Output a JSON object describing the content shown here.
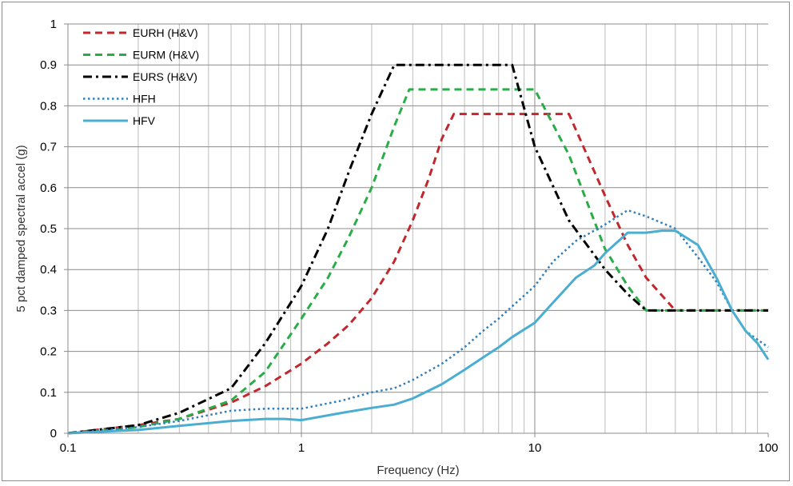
{
  "chart_data": {
    "type": "line",
    "title": "",
    "xlabel": "Frequency (Hz)",
    "ylabel": "5 pct damped spectral accel (g)",
    "xscale": "log",
    "xlim": [
      0.1,
      100
    ],
    "ylim": [
      0,
      1
    ],
    "x_ticks": [
      "0.1",
      "1",
      "10",
      "100"
    ],
    "y_ticks": [
      "0",
      "0.1",
      "0.2",
      "0.3",
      "0.4",
      "0.5",
      "0.6",
      "0.7",
      "0.8",
      "0.9",
      "1"
    ],
    "grid": "major and minor vertical, major horizontal",
    "legend_position": "top-left",
    "series": [
      {
        "name": "EURH (H&V)",
        "color": "#c0282d",
        "dash": "dashed",
        "x": [
          0.1,
          0.2,
          0.3,
          0.5,
          0.7,
          1,
          1.3,
          1.6,
          2,
          2.5,
          3,
          3.5,
          4,
          4.5,
          10,
          14,
          20,
          25,
          30,
          40,
          100
        ],
        "y": [
          0,
          0.02,
          0.035,
          0.075,
          0.115,
          0.17,
          0.22,
          0.265,
          0.33,
          0.42,
          0.52,
          0.62,
          0.72,
          0.78,
          0.78,
          0.78,
          0.58,
          0.46,
          0.38,
          0.3,
          0.3
        ]
      },
      {
        "name": "EURM (H&V)",
        "color": "#2aac48",
        "dash": "dashed",
        "x": [
          0.1,
          0.2,
          0.3,
          0.5,
          0.7,
          1,
          1.3,
          1.6,
          2,
          2.5,
          2.9,
          10,
          14,
          20,
          25,
          30,
          35,
          100
        ],
        "y": [
          0,
          0.015,
          0.035,
          0.08,
          0.15,
          0.28,
          0.38,
          0.48,
          0.6,
          0.75,
          0.84,
          0.84,
          0.68,
          0.45,
          0.36,
          0.3,
          0.3,
          0.3
        ]
      },
      {
        "name": "EURS (H&V)",
        "color": "#000000",
        "dash": "dash-dot",
        "x": [
          0.1,
          0.2,
          0.3,
          0.5,
          0.7,
          1,
          1.3,
          1.6,
          2,
          2.5,
          8,
          10,
          14,
          20,
          25,
          30,
          100
        ],
        "y": [
          0,
          0.02,
          0.05,
          0.11,
          0.22,
          0.36,
          0.5,
          0.64,
          0.78,
          0.9,
          0.9,
          0.7,
          0.52,
          0.4,
          0.34,
          0.3,
          0.3
        ]
      },
      {
        "name": "HFH",
        "color": "#2f7ebc",
        "dash": "dotted",
        "x": [
          0.1,
          0.2,
          0.3,
          0.5,
          0.7,
          1,
          1.5,
          2,
          2.5,
          3,
          4,
          5,
          6,
          7,
          8,
          10,
          12,
          15,
          20,
          25,
          30,
          40,
          50,
          60,
          70,
          80,
          100
        ],
        "y": [
          0,
          0.015,
          0.03,
          0.055,
          0.06,
          0.06,
          0.08,
          0.1,
          0.11,
          0.13,
          0.17,
          0.21,
          0.25,
          0.28,
          0.31,
          0.36,
          0.42,
          0.47,
          0.51,
          0.545,
          0.53,
          0.5,
          0.43,
          0.37,
          0.3,
          0.25,
          0.21
        ]
      },
      {
        "name": "HFV",
        "color": "#4aaed0",
        "dash": "solid",
        "x": [
          0.1,
          0.2,
          0.3,
          0.5,
          0.7,
          0.85,
          1,
          1.5,
          2,
          2.5,
          3,
          4,
          5,
          6,
          7,
          8,
          10,
          12,
          15,
          18,
          20,
          25,
          30,
          35,
          40,
          50,
          60,
          70,
          80,
          90,
          100
        ],
        "y": [
          0,
          0.008,
          0.018,
          0.03,
          0.035,
          0.035,
          0.032,
          0.05,
          0.062,
          0.07,
          0.085,
          0.12,
          0.155,
          0.185,
          0.21,
          0.235,
          0.27,
          0.32,
          0.38,
          0.41,
          0.44,
          0.49,
          0.49,
          0.495,
          0.495,
          0.46,
          0.38,
          0.3,
          0.25,
          0.22,
          0.18
        ]
      }
    ]
  }
}
